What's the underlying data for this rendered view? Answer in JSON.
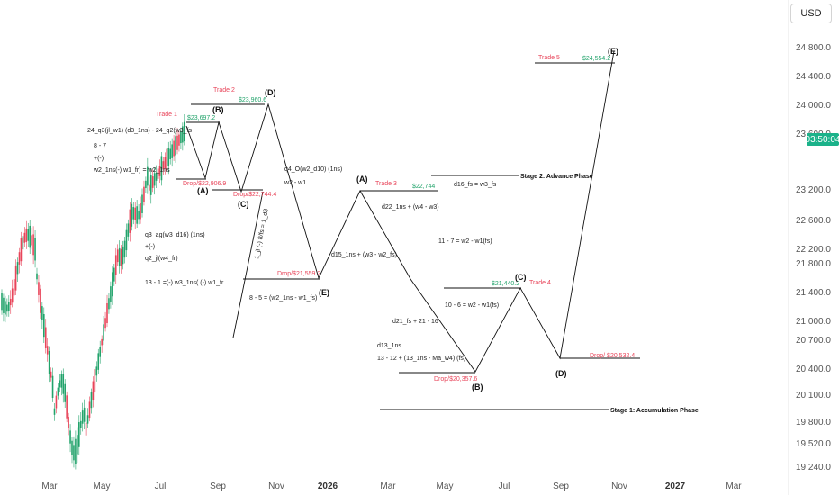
{
  "currency": "USD",
  "last_price_label": "03:50:04",
  "colors": {
    "up": "#22a36b",
    "down": "#e8455a",
    "line": "#111111",
    "price_tag": "#1bb28a"
  },
  "price_axis": [
    "24,800.0",
    "24,400.0",
    "24,000.0",
    "23,600.0",
    "23,200.0",
    "22,600.0",
    "22,200.0",
    "21,800.0",
    "21,400.0",
    "21,000.0",
    "20,700.0",
    "20,400.0",
    "20,100.0",
    "19,800.0",
    "19,520.0",
    "19,240.0"
  ],
  "time_axis": [
    {
      "label": "Mar",
      "bold": false
    },
    {
      "label": "May",
      "bold": false
    },
    {
      "label": "Jul",
      "bold": false
    },
    {
      "label": "Sep",
      "bold": false
    },
    {
      "label": "Nov",
      "bold": false
    },
    {
      "label": "2026",
      "bold": true
    },
    {
      "label": "Mar",
      "bold": false
    },
    {
      "label": "May",
      "bold": false
    },
    {
      "label": "Jul",
      "bold": false
    },
    {
      "label": "Sep",
      "bold": false
    },
    {
      "label": "Nov",
      "bold": false
    },
    {
      "label": "2027",
      "bold": true
    },
    {
      "label": "Mar",
      "bold": false
    }
  ],
  "chart_data": {
    "type": "line",
    "wave_points": [
      {
        "label": "Trade 1 top",
        "price": 23697.2
      },
      {
        "label": "(A)",
        "price": 22906.9
      },
      {
        "label": "(B)",
        "price": 23697.2
      },
      {
        "label": "(C)",
        "price": 22744.4
      },
      {
        "label": "(D)",
        "price": 23960.6
      },
      {
        "label": "(E)",
        "price": 21559.2
      },
      {
        "label": "(A)",
        "price": 22744
      },
      {
        "label": "(B)",
        "price": 20357.6
      },
      {
        "label": "(C)",
        "price": 21440.2
      },
      {
        "label": "(D)",
        "price": 20532.4
      },
      {
        "label": "(E)",
        "price": 24554.2
      }
    ],
    "trades": [
      "Trade 1",
      "Trade 2",
      "Trade 3",
      "Trade 4",
      "Trade 5"
    ],
    "phases": [
      "Stage 1: Accumulation Phase",
      "Stage 2: Advance Phase"
    ]
  },
  "labels": {
    "wave_A1": "(A)",
    "wave_B1": "(B)",
    "wave_C1": "(C)",
    "wave_D1": "(D)",
    "wave_E1": "(E)",
    "wave_A2": "(A)",
    "wave_B2": "(B)",
    "wave_C2": "(C)",
    "wave_D2": "(D)",
    "wave_E2": "(E)",
    "trade1": "Trade 1",
    "trade2": "Trade 2",
    "trade3": "Trade 3",
    "trade4": "Trade 4",
    "trade5": "Trade 5",
    "p_trade1": "$23,697.2",
    "p_trade2": "$23,960.6",
    "p_trade3": "$22,744",
    "p_trade4": "$21,440.2",
    "p_trade5": "$24,554.2",
    "drop1": "Drop/$22,906.9",
    "drop2": "Drop/$22,744.4",
    "drop3": "Drop/$21,559.2",
    "drop4": "Drop/$20,357.6",
    "drop5": "Drop/ $20,532.4",
    "stage1": "Stage 1: Accumulation Phase",
    "stage2": "Stage 2: Advance Phase",
    "f1": "24_q3(jl_w1) (d3_1ns) - 24_q2(w3_fs",
    "f2": "8 - 7",
    "f3": "+(-)",
    "f4": "w2_1ns(-) w1_fr) = w2_1ns",
    "f5": "q3_ag(w3_d16) (1ns)",
    "f6": "+(-)",
    "f7": "q2_jl(w4_fr)",
    "f8": "13 - 1 =(-) w3_1ns( (-) w1_fr",
    "f9": "q4_O(w2_d10) (1ns)",
    "f10": "w2 - w1",
    "f11": "1_jl (-) 8/fs = 1_d8",
    "f12": "8 - 5 = (w2_1ns - w1_fs)",
    "f13": "d15_1ns + (w3 - w2_fs)",
    "f14": "d22_1ns + (w4 - w3)",
    "f15": "d16_fs = w3_fs",
    "f16": "11 - 7 = w2 - w1(fs)",
    "f17": "10 - 6 = w2 - w1(fs)",
    "f18": "d21_fs + 21 - 16",
    "f19": "d13_1ns",
    "f20": "13 - 12 + (13_1ns - Ma_w4) (fs)"
  }
}
